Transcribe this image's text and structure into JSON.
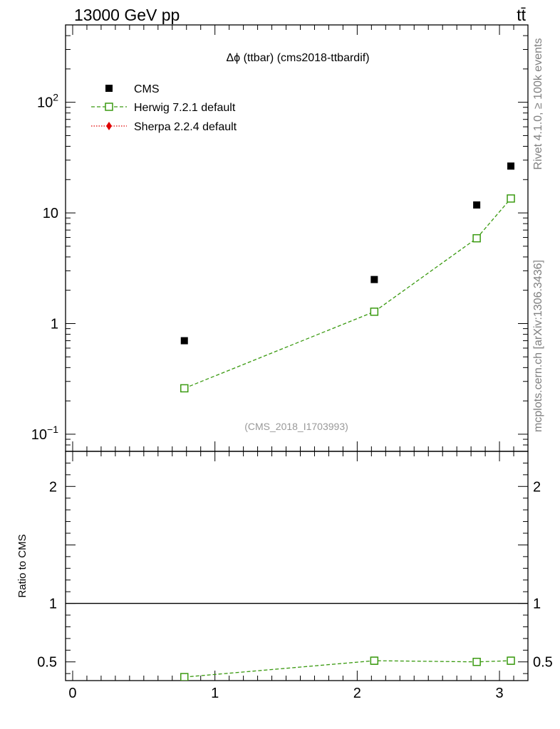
{
  "header": {
    "left": "13000 GeV pp",
    "right": "tt̄"
  },
  "side_labels": {
    "rivet": "Rivet 4.1.0, ≥ 100k events",
    "mcplots": "mcplots.cern.ch [arXiv:1306.3436]"
  },
  "colors": {
    "cms": "#000000",
    "herwig": "#3a9a10",
    "sherpa": "#e00000",
    "watermark": "#999999",
    "side_text": "#808080"
  },
  "chart_data": [
    {
      "type": "scatter",
      "panel": "main",
      "title": "Δϕ (ttbar) (cms2018-ttbardif)",
      "watermark": "(CMS_2018_I1703993)",
      "yscale": "log",
      "ylim": [
        0.07,
        500
      ],
      "xlim": [
        -0.05,
        3.2
      ],
      "yticks": [
        {
          "value": 0.1,
          "base": "10",
          "exp": "−1"
        },
        {
          "value": 1,
          "base": "1",
          "exp": ""
        },
        {
          "value": 10,
          "base": "10",
          "exp": ""
        },
        {
          "value": 100,
          "base": "10",
          "exp": "2"
        }
      ],
      "legend": {
        "placement": "top-left",
        "entries": [
          "CMS",
          "Herwig 7.2.1 default",
          "Sherpa 2.2.4 default"
        ]
      },
      "series": [
        {
          "name": "CMS",
          "marker": "filled-square",
          "x": [
            0.785,
            2.12,
            2.84,
            3.08
          ],
          "y": [
            0.7,
            2.5,
            11.8,
            26.5
          ]
        },
        {
          "name": "Herwig 7.2.1 default",
          "marker": "open-square",
          "line": "dashed",
          "x": [
            0.785,
            2.12,
            2.84,
            3.08
          ],
          "y": [
            0.26,
            1.28,
            5.9,
            13.5
          ],
          "err": [
            0.02,
            0.04,
            0.15,
            0.3
          ]
        },
        {
          "name": "Sherpa 2.2.4 default",
          "marker": "filled-diamond",
          "line": "dotted",
          "x": [],
          "y": []
        }
      ]
    },
    {
      "type": "scatter",
      "panel": "ratio",
      "ylabel": "Ratio to CMS",
      "ylim": [
        0.34,
        2.3
      ],
      "xlim": [
        -0.05,
        3.2
      ],
      "yticks": [
        {
          "value": 0.5,
          "label": "0.5"
        },
        {
          "value": 1,
          "label": "1"
        },
        {
          "value": 2,
          "label": "2"
        }
      ],
      "xticks": [
        {
          "value": 0,
          "label": "0"
        },
        {
          "value": 1,
          "label": "1"
        },
        {
          "value": 2,
          "label": "2"
        },
        {
          "value": 3,
          "label": "3"
        }
      ],
      "reference_line": 1,
      "series": [
        {
          "name": "Herwig 7.2.1 default",
          "marker": "open-square",
          "line": "dashed",
          "x": [
            0.785,
            2.12,
            2.84,
            3.08
          ],
          "y": [
            0.37,
            0.51,
            0.5,
            0.51
          ],
          "err": [
            0.0,
            0.03,
            0.025,
            0.03
          ]
        }
      ]
    }
  ]
}
